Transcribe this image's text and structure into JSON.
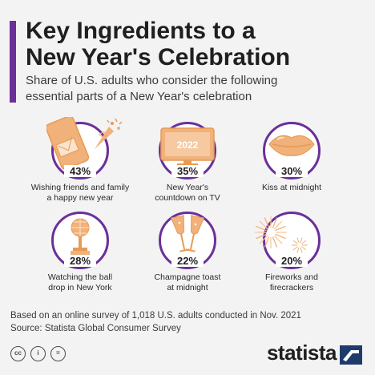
{
  "header": {
    "title_lines": [
      "Key Ingredients to a",
      "New Year's Celebration"
    ],
    "subtitle_lines": [
      "Share of U.S. adults who consider the following",
      "essential parts of a New Year's celebration"
    ]
  },
  "chart_data": {
    "type": "pictogram",
    "title": "Key Ingredients to a New Year's Celebration",
    "subtitle": "Share of U.S. adults who consider the following essential parts of a New Year's celebration",
    "unit": "%",
    "categories": [
      "Wishing friends and family a happy new year",
      "New Year's countdown on TV",
      "Kiss at midnight",
      "Watching the ball drop in New York",
      "Champagne toast at midnight",
      "Fireworks and firecrackers"
    ],
    "values": [
      43,
      35,
      30,
      28,
      22,
      20
    ],
    "items": [
      {
        "label": "43%",
        "caption_lines": [
          "Wishing friends and family",
          "a happy new year"
        ],
        "icon": "phone-envelope-confetti-icon"
      },
      {
        "label": "35%",
        "caption_lines": [
          "New Year's",
          "countdown on TV"
        ],
        "icon": "tv-2022-icon",
        "tv_text": "2022"
      },
      {
        "label": "30%",
        "caption_lines": [
          "Kiss at midnight"
        ],
        "icon": "lips-icon"
      },
      {
        "label": "28%",
        "caption_lines": [
          "Watching the ball",
          "drop in New York"
        ],
        "icon": "disco-ball-icon"
      },
      {
        "label": "22%",
        "caption_lines": [
          "Champagne toast",
          "at midnight"
        ],
        "icon": "champagne-glasses-icon"
      },
      {
        "label": "20%",
        "caption_lines": [
          "Fireworks and",
          "firecrackers"
        ],
        "icon": "fireworks-icon"
      }
    ],
    "colors": {
      "accent": "#6b2f9a",
      "illustration": "#f0b27a",
      "illustration_dark": "#e79a56"
    }
  },
  "footer": {
    "note_lines": [
      "Based on an online survey of 1,018 U.S. adults conducted in Nov. 2021",
      "Source: Statista Global Consumer Survey"
    ],
    "license_icons": [
      "cc-icon",
      "attribution-icon",
      "no-derivatives-icon"
    ],
    "license_glyphs": [
      "cc",
      "i",
      "="
    ],
    "brand": "statista"
  }
}
